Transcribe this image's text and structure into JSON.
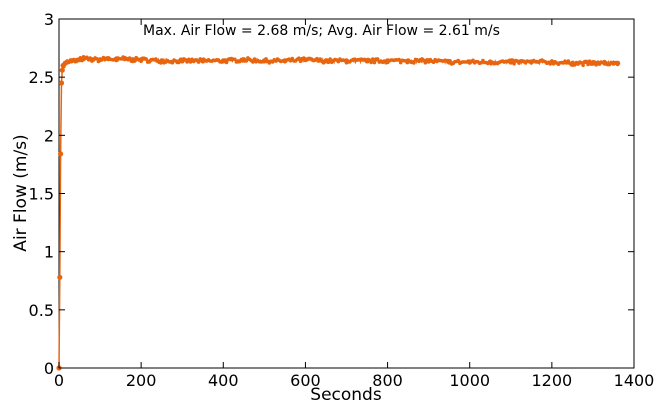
{
  "chart_data": {
    "type": "line",
    "title": "",
    "annotation": "Max. Air Flow = 2.68 m/s; Avg. Air Flow = 2.61 m/s",
    "xlabel": "Seconds",
    "ylabel": "Air Flow (m/s)",
    "xlim": [
      0,
      1400
    ],
    "ylim": [
      0,
      3
    ],
    "xticks": [
      0,
      200,
      400,
      600,
      800,
      1000,
      1200,
      1400
    ],
    "yticks": [
      0,
      0.5,
      1,
      1.5,
      2,
      2.5,
      3
    ],
    "xtick_labels": [
      "0",
      "200",
      "400",
      "600",
      "800",
      "1000",
      "1200",
      "1400"
    ],
    "ytick_labels": [
      "0",
      "0.5",
      "1",
      "1.5",
      "2",
      "2.5",
      "3"
    ],
    "grid": false,
    "legend": "none",
    "series_color": "#e8650f",
    "series": [
      {
        "x": [
          0,
          2,
          4,
          6,
          8,
          10,
          15,
          20,
          30,
          40,
          50,
          60,
          80,
          100,
          120,
          140,
          160,
          180,
          200,
          250,
          300,
          350,
          400,
          450,
          500,
          550,
          600,
          650,
          700,
          750,
          800,
          850,
          900,
          950,
          1000,
          1050,
          1100,
          1150,
          1200,
          1250,
          1300,
          1330,
          1350,
          1360
        ],
        "y": [
          0,
          0.78,
          1.84,
          2.45,
          2.56,
          2.6,
          2.62,
          2.63,
          2.64,
          2.64,
          2.65,
          2.66,
          2.65,
          2.65,
          2.66,
          2.65,
          2.66,
          2.65,
          2.65,
          2.64,
          2.64,
          2.64,
          2.64,
          2.65,
          2.64,
          2.64,
          2.65,
          2.64,
          2.64,
          2.64,
          2.64,
          2.64,
          2.64,
          2.63,
          2.63,
          2.63,
          2.63,
          2.63,
          2.63,
          2.62,
          2.62,
          2.62,
          2.62,
          2.62
        ]
      }
    ]
  }
}
